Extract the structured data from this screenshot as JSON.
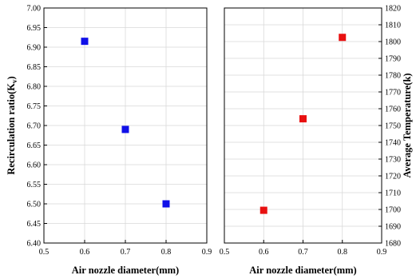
{
  "chart_data": [
    {
      "type": "scatter",
      "xlabel": "Air nozzle diameter(mm)",
      "ylabel": "Recirculation ratio(K",
      "ylabel_sub": "v",
      "ylabel_suffix": ")",
      "xlim": [
        0.5,
        0.9
      ],
      "ylim": [
        6.4,
        7.0
      ],
      "xticks": [
        "0.5",
        "0.6",
        "0.7",
        "0.8",
        "0.9"
      ],
      "yticks": [
        "6.40",
        "6.45",
        "6.50",
        "6.55",
        "6.60",
        "6.65",
        "6.70",
        "6.75",
        "6.80",
        "6.85",
        "6.90",
        "6.95",
        "7.00"
      ],
      "x": [
        0.6,
        0.7,
        0.8
      ],
      "y": [
        6.915,
        6.69,
        6.5
      ],
      "color": "#1010e8",
      "grid": true
    },
    {
      "type": "scatter",
      "xlabel": "Air nozzle diameter(mm)",
      "ylabel": "Average Temperature(k)",
      "ylabel_position": "right",
      "xlim": [
        0.5,
        0.9
      ],
      "ylim": [
        1680,
        1820
      ],
      "xticks": [
        "0.5",
        "0.6",
        "0.7",
        "0.8",
        "0.9"
      ],
      "yticks": [
        "1680",
        "1690",
        "1700",
        "1710",
        "1720",
        "1730",
        "1740",
        "1750",
        "1760",
        "1770",
        "1780",
        "1790",
        "1800",
        "1810",
        "1820"
      ],
      "x": [
        0.6,
        0.7,
        0.8
      ],
      "y": [
        1699.5,
        1754,
        1802.5
      ],
      "color": "#e81010",
      "grid": true
    }
  ]
}
